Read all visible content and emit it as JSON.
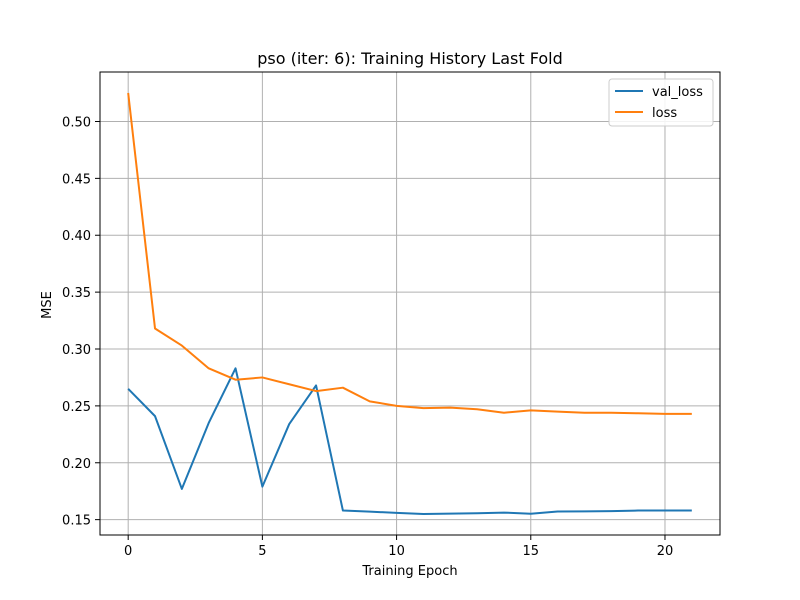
{
  "chart_data": {
    "type": "line",
    "title": "pso (iter: 6): Training History Last Fold",
    "xlabel": "Training Epoch",
    "ylabel": "MSE",
    "xlim": [
      -1.05,
      22.05
    ],
    "ylim": [
      0.1365,
      0.5435
    ],
    "xticks": [
      0,
      5,
      10,
      15,
      20
    ],
    "yticks": [
      0.15,
      0.2,
      0.25,
      0.3,
      0.35,
      0.4,
      0.45,
      0.5
    ],
    "xtick_labels": [
      "0",
      "5",
      "10",
      "15",
      "20"
    ],
    "ytick_labels": [
      "0.15",
      "0.20",
      "0.25",
      "0.30",
      "0.35",
      "0.40",
      "0.45",
      "0.50"
    ],
    "grid": true,
    "legend_position": "top-right",
    "x": [
      0,
      1,
      2,
      3,
      4,
      5,
      6,
      7,
      8,
      9,
      10,
      11,
      12,
      13,
      14,
      15,
      16,
      17,
      18,
      19,
      20,
      21
    ],
    "series": [
      {
        "name": "val_loss",
        "color": "#1f77b4",
        "values": [
          0.265,
          0.241,
          0.177,
          0.235,
          0.283,
          0.179,
          0.234,
          0.268,
          0.158,
          0.157,
          0.156,
          0.155,
          0.1553,
          0.1556,
          0.1562,
          0.1552,
          0.1572,
          0.1573,
          0.1575,
          0.158,
          0.158,
          0.158
        ]
      },
      {
        "name": "loss",
        "color": "#ff7f0e",
        "values": [
          0.525,
          0.318,
          0.303,
          0.283,
          0.273,
          0.275,
          0.269,
          0.263,
          0.266,
          0.254,
          0.25,
          0.248,
          0.2485,
          0.247,
          0.244,
          0.246,
          0.245,
          0.244,
          0.244,
          0.2435,
          0.243,
          0.243
        ]
      }
    ]
  }
}
